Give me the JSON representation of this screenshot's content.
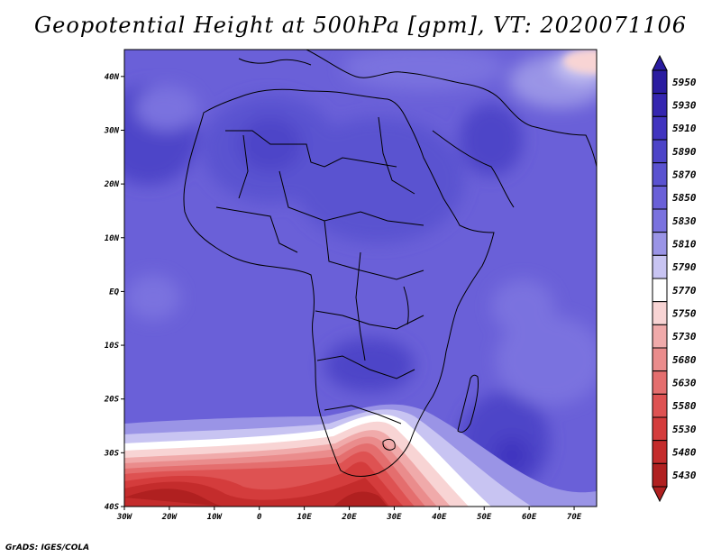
{
  "title": "Geopotential Height at 500hPa [gpm], VT: 2020071106",
  "credit": "GrADS: IGES/COLA",
  "map": {
    "lon_range": [
      -30,
      75
    ],
    "lat_range": [
      -40,
      45
    ],
    "lon_ticks": [
      {
        "value": -30,
        "label": "30W"
      },
      {
        "value": -20,
        "label": "20W"
      },
      {
        "value": -10,
        "label": "10W"
      },
      {
        "value": 0,
        "label": "0"
      },
      {
        "value": 10,
        "label": "10E"
      },
      {
        "value": 20,
        "label": "20E"
      },
      {
        "value": 30,
        "label": "30E"
      },
      {
        "value": 40,
        "label": "40E"
      },
      {
        "value": 50,
        "label": "50E"
      },
      {
        "value": 60,
        "label": "60E"
      },
      {
        "value": 70,
        "label": "70E"
      }
    ],
    "lat_ticks": [
      {
        "value": 40,
        "label": "40N"
      },
      {
        "value": 30,
        "label": "30N"
      },
      {
        "value": 20,
        "label": "20N"
      },
      {
        "value": 10,
        "label": "10N"
      },
      {
        "value": 0,
        "label": "EQ"
      },
      {
        "value": -10,
        "label": "10S"
      },
      {
        "value": -20,
        "label": "20S"
      },
      {
        "value": -30,
        "label": "30S"
      },
      {
        "value": -40,
        "label": "40S"
      }
    ],
    "background_color": "#6a60d8"
  },
  "colorbar": {
    "entries": [
      {
        "label": "5950",
        "color": "#2a1ca0"
      },
      {
        "label": "5930",
        "color": "#3526b0"
      },
      {
        "label": "5910",
        "color": "#4134bf"
      },
      {
        "label": "5890",
        "color": "#4d44c8"
      },
      {
        "label": "5870",
        "color": "#5a52d0"
      },
      {
        "label": "5850",
        "color": "#6a60d8"
      },
      {
        "label": "5830",
        "color": "#7a72df"
      },
      {
        "label": "5810",
        "color": "#9a94e6"
      },
      {
        "label": "5790",
        "color": "#c8c4f2"
      },
      {
        "label": "5770",
        "color": "#ffffff"
      },
      {
        "label": "5750",
        "color": "#f8d4d4"
      },
      {
        "label": "5730",
        "color": "#f0aaaa"
      },
      {
        "label": "5680",
        "color": "#ea8c8c"
      },
      {
        "label": "5630",
        "color": "#e46e6e"
      },
      {
        "label": "5580",
        "color": "#de5252"
      },
      {
        "label": "5530",
        "color": "#d43c3c"
      },
      {
        "label": "5480",
        "color": "#c42c2c"
      },
      {
        "label": "5430",
        "color": "#b02020"
      }
    ]
  }
}
